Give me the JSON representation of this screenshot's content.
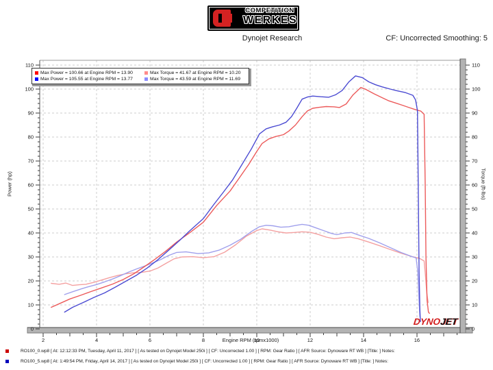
{
  "header": {
    "logo_line1": "COMPETITION",
    "logo_line2": "WERKES",
    "title": "Dynojet Research",
    "cf_note": "CF: Uncorrected Smoothing: 5"
  },
  "legend_stats": {
    "items": [
      {
        "swatch_color": "#ff0000",
        "label": "Max Power = 100.66 at Engine RPM = 13.90"
      },
      {
        "swatch_color": "#ff8c8c",
        "label": "Max Torque = 41.67 at Engine RPM = 10.20"
      },
      {
        "swatch_color": "#0000ff",
        "label": "Max Power = 105.55 at Engine RPM = 13.77"
      },
      {
        "swatch_color": "#8c8cff",
        "label": "Max Torque = 43.59 at Engine RPM = 11.69"
      }
    ]
  },
  "watermark": {
    "part1": "DYNO",
    "part2": "JET"
  },
  "runs": [
    {
      "swatch_color": "#cc0000",
      "text": "RO100_0.wp8 [ At: 12:12:33 PM, Tuesday, April 11, 2017 ] [ As tested on Dynojet Model 250i ] [ CF: Uncorrected 1.00 ] [ RPM: Gear Ratio ] [ AFR Source: Dynoware RT WB ] [Title: ]  Notes:"
    },
    {
      "swatch_color": "#0000bb",
      "text": "RO100_5.wp8 [ At: 1:49:54 PM, Friday, April 14, 2017 ] [ As tested on Dynojet Model 250i ] [ CF: Uncorrected 1.00 ] [ RPM: Gear Ratio ] [ AFR Source: Dynoware RT WB ] [Title: ]  Notes:"
    }
  ],
  "chart_data": {
    "type": "line",
    "title": "Dynojet Research",
    "grid": true,
    "x_axis": {
      "label": "Engine RPM (rpmx1000)",
      "min": 1.87,
      "max": 17.67,
      "major_ticks": [
        2,
        4,
        6,
        8,
        10,
        12,
        14,
        16
      ],
      "minor_step": 0.5
    },
    "y_axis": {
      "label_left": "Power (hp)",
      "label_right": "Torque (ft-lbs)",
      "min": 0,
      "max": 112,
      "major_ticks": [
        0,
        10,
        20,
        30,
        40,
        50,
        60,
        70,
        80,
        90,
        100,
        110
      ],
      "minor_step": 2
    },
    "series": [
      {
        "name": "torque-run1-red",
        "run": "RO100_0.wp8",
        "unit": "ft-lbs",
        "color": "#f4a0a0",
        "max": {
          "value": 41.67,
          "rpm": 10.2
        },
        "points": [
          [
            2.3,
            19
          ],
          [
            2.6,
            18.6
          ],
          [
            2.85,
            19.1
          ],
          [
            3.1,
            18.1
          ],
          [
            3.35,
            18.4
          ],
          [
            3.6,
            18.6
          ],
          [
            3.9,
            19.4
          ],
          [
            4.2,
            20.4
          ],
          [
            4.5,
            21.4
          ],
          [
            4.8,
            22.3
          ],
          [
            5.1,
            23
          ],
          [
            5.4,
            23.4
          ],
          [
            5.7,
            23.6
          ],
          [
            6,
            24.1
          ],
          [
            6.3,
            25.4
          ],
          [
            6.6,
            27.3
          ],
          [
            6.9,
            29.2
          ],
          [
            7.2,
            30
          ],
          [
            7.6,
            30.1
          ],
          [
            8,
            29.7
          ],
          [
            8.4,
            30.1
          ],
          [
            8.8,
            32
          ],
          [
            9.2,
            35
          ],
          [
            9.6,
            38.6
          ],
          [
            10,
            41
          ],
          [
            10.2,
            41.7
          ],
          [
            10.5,
            41.2
          ],
          [
            10.8,
            40.5
          ],
          [
            11.1,
            40
          ],
          [
            11.4,
            40.2
          ],
          [
            11.7,
            40.5
          ],
          [
            12,
            40.3
          ],
          [
            12.3,
            39.4
          ],
          [
            12.6,
            38.3
          ],
          [
            12.9,
            37.6
          ],
          [
            13.2,
            38
          ],
          [
            13.5,
            38.3
          ],
          [
            13.8,
            37.6
          ],
          [
            14.2,
            36.2
          ],
          [
            14.6,
            34.7
          ],
          [
            15,
            33.1
          ],
          [
            15.4,
            31.6
          ],
          [
            15.8,
            30.2
          ],
          [
            16.1,
            29.4
          ],
          [
            16.27,
            28.3
          ],
          [
            16.32,
            22
          ],
          [
            16.37,
            15
          ],
          [
            16.42,
            11
          ]
        ]
      },
      {
        "name": "torque-run2-blue",
        "run": "RO100_5.wp8",
        "unit": "ft-lbs",
        "color": "#a0a0ec",
        "max": {
          "value": 43.59,
          "rpm": 11.69
        },
        "points": [
          [
            2.8,
            14.3
          ],
          [
            3.1,
            15.5
          ],
          [
            3.4,
            16.6
          ],
          [
            3.7,
            17.6
          ],
          [
            4,
            18.5
          ],
          [
            4.3,
            19.6
          ],
          [
            4.6,
            20.8
          ],
          [
            4.9,
            22.2
          ],
          [
            5.2,
            23.7
          ],
          [
            5.5,
            25
          ],
          [
            5.8,
            26.2
          ],
          [
            6.1,
            27.5
          ],
          [
            6.4,
            28.9
          ],
          [
            6.7,
            30.6
          ],
          [
            7,
            31.9
          ],
          [
            7.35,
            32.1
          ],
          [
            7.8,
            31.4
          ],
          [
            8.2,
            31.7
          ],
          [
            8.6,
            32.9
          ],
          [
            9,
            34.9
          ],
          [
            9.4,
            37.4
          ],
          [
            9.8,
            40.6
          ],
          [
            10.1,
            42.6
          ],
          [
            10.35,
            43.2
          ],
          [
            10.6,
            43
          ],
          [
            10.9,
            42.4
          ],
          [
            11.2,
            42.6
          ],
          [
            11.45,
            43.1
          ],
          [
            11.7,
            43.6
          ],
          [
            11.95,
            43.2
          ],
          [
            12.2,
            42.2
          ],
          [
            12.5,
            41
          ],
          [
            12.8,
            39.8
          ],
          [
            13,
            39.3
          ],
          [
            13.3,
            40
          ],
          [
            13.55,
            40.2
          ],
          [
            13.8,
            39.2
          ],
          [
            14.2,
            37.7
          ],
          [
            14.6,
            35.9
          ],
          [
            15,
            33.9
          ],
          [
            15.4,
            31.9
          ],
          [
            15.8,
            30.2
          ],
          [
            15.97,
            29.6
          ],
          [
            16.03,
            24
          ],
          [
            16.07,
            14
          ],
          [
            16.11,
            5
          ]
        ]
      },
      {
        "name": "power-run1-red",
        "run": "RO100_0.wp8",
        "unit": "hp",
        "color": "#ec5a5a",
        "max": {
          "value": 100.66,
          "rpm": 13.9
        },
        "points": [
          [
            2.3,
            9
          ],
          [
            2.6,
            10.5
          ],
          [
            3,
            12.5
          ],
          [
            3.4,
            14
          ],
          [
            3.8,
            15.6
          ],
          [
            4.2,
            17.1
          ],
          [
            4.6,
            18.7
          ],
          [
            5,
            20.6
          ],
          [
            5.4,
            23
          ],
          [
            5.8,
            26
          ],
          [
            6.2,
            29.1
          ],
          [
            6.6,
            32.5
          ],
          [
            7,
            36.2
          ],
          [
            7.5,
            40.2
          ],
          [
            8,
            44.5
          ],
          [
            8.5,
            51.5
          ],
          [
            9,
            57.5
          ],
          [
            9.35,
            63
          ],
          [
            9.7,
            68.6
          ],
          [
            10,
            74
          ],
          [
            10.2,
            77.3
          ],
          [
            10.45,
            79.2
          ],
          [
            10.7,
            80.2
          ],
          [
            11,
            81
          ],
          [
            11.2,
            82.5
          ],
          [
            11.45,
            85
          ],
          [
            11.7,
            88.5
          ],
          [
            11.9,
            90.9
          ],
          [
            12.1,
            92
          ],
          [
            12.35,
            92.4
          ],
          [
            12.6,
            92.7
          ],
          [
            12.9,
            92.6
          ],
          [
            13.1,
            92.3
          ],
          [
            13.35,
            93.8
          ],
          [
            13.6,
            97.5
          ],
          [
            13.9,
            100.7
          ],
          [
            14.1,
            99.8
          ],
          [
            14.4,
            98
          ],
          [
            14.7,
            96.4
          ],
          [
            14.95,
            95.1
          ],
          [
            15.2,
            94.2
          ],
          [
            15.45,
            93.3
          ],
          [
            15.7,
            92.3
          ],
          [
            15.95,
            91.4
          ],
          [
            16.15,
            90.8
          ],
          [
            16.27,
            89.5
          ],
          [
            16.31,
            60
          ],
          [
            16.34,
            30
          ],
          [
            16.38,
            12
          ],
          [
            16.43,
            7
          ],
          [
            16.47,
            6.5
          ]
        ]
      },
      {
        "name": "power-run2-blue",
        "run": "RO100_5.wp8",
        "unit": "hp",
        "color": "#4a4ad2",
        "max": {
          "value": 105.55,
          "rpm": 13.77
        },
        "points": [
          [
            2.8,
            7
          ],
          [
            3.1,
            9
          ],
          [
            3.5,
            11
          ],
          [
            3.9,
            13.1
          ],
          [
            4.3,
            15
          ],
          [
            4.7,
            17.4
          ],
          [
            5.1,
            19.9
          ],
          [
            5.5,
            22.4
          ],
          [
            5.9,
            25.4
          ],
          [
            6.3,
            28.9
          ],
          [
            6.7,
            32.8
          ],
          [
            7.1,
            36.8
          ],
          [
            7.5,
            41
          ],
          [
            8,
            46
          ],
          [
            8.4,
            52
          ],
          [
            8.75,
            57
          ],
          [
            9.1,
            62.2
          ],
          [
            9.4,
            67.7
          ],
          [
            9.8,
            75.1
          ],
          [
            10.1,
            81.3
          ],
          [
            10.35,
            83.4
          ],
          [
            10.6,
            84.3
          ],
          [
            10.85,
            85
          ],
          [
            11.1,
            86.2
          ],
          [
            11.3,
            88.5
          ],
          [
            11.5,
            92
          ],
          [
            11.7,
            95.8
          ],
          [
            11.9,
            96.7
          ],
          [
            12.1,
            97.1
          ],
          [
            12.4,
            96.8
          ],
          [
            12.7,
            96.6
          ],
          [
            12.95,
            97.6
          ],
          [
            13.2,
            99.4
          ],
          [
            13.45,
            103
          ],
          [
            13.7,
            105.5
          ],
          [
            13.95,
            104.8
          ],
          [
            14.2,
            103
          ],
          [
            14.45,
            101.8
          ],
          [
            14.7,
            100.9
          ],
          [
            15,
            100
          ],
          [
            15.25,
            99.3
          ],
          [
            15.55,
            98.6
          ],
          [
            15.85,
            97.4
          ],
          [
            15.95,
            95.5
          ],
          [
            16.02,
            91
          ],
          [
            16.05,
            60
          ],
          [
            16.08,
            25
          ],
          [
            16.11,
            8
          ],
          [
            16.13,
            3
          ]
        ]
      }
    ]
  }
}
